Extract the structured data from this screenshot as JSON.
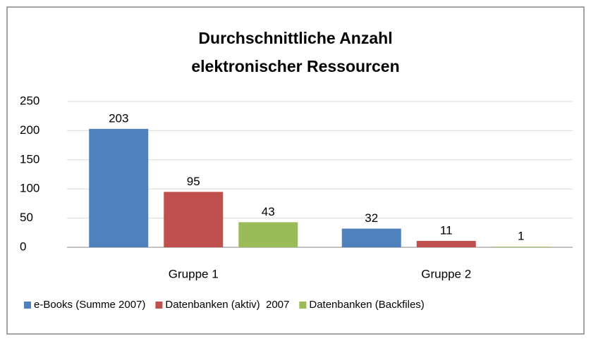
{
  "chart_data": {
    "type": "bar",
    "title": [
      "Durchschnittliche Anzahl",
      "elektronischer Ressourcen"
    ],
    "categories": [
      "Gruppe 1",
      "Gruppe 2"
    ],
    "series": [
      {
        "name": "e-Books (Summe 2007)",
        "color": "#4f81bd",
        "values": [
          203,
          32
        ]
      },
      {
        "name": "Datenbanken (aktiv)  2007",
        "color": "#c0504d",
        "values": [
          95,
          11
        ]
      },
      {
        "name": "Datenbanken (Backfiles)",
        "color": "#9bbb59",
        "values": [
          43,
          1
        ]
      }
    ],
    "ylim": [
      0,
      250
    ],
    "yticks": [
      0,
      50,
      100,
      150,
      200,
      250
    ],
    "grid": true,
    "legend": "bottom"
  }
}
